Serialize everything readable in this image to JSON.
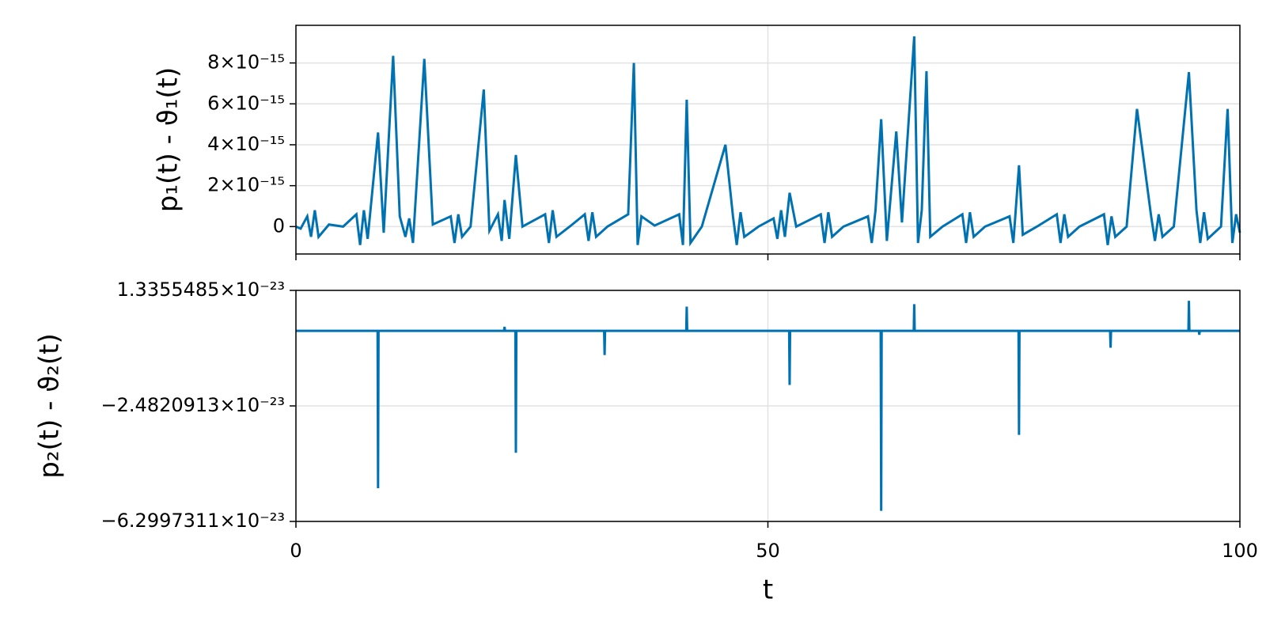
{
  "chart_data": [
    {
      "type": "line",
      "ylabel": "p₁(t) - ϑ₁(t)",
      "color": "#0072b2",
      "grid": true,
      "show_xtick_labels": false,
      "xlim": [
        0,
        100
      ],
      "xticks": [
        0,
        50,
        100
      ],
      "ylim": [
        -1.34e-15,
        9.84e-15
      ],
      "yticks": [
        0,
        {
          "value": 2e-15,
          "label": "2×10⁻¹⁵"
        },
        {
          "value": 4e-15,
          "label": "4×10⁻¹⁵"
        },
        {
          "value": 6e-15,
          "label": "6×10⁻¹⁵"
        },
        {
          "value": 8e-15,
          "label": "8×10⁻¹⁵"
        }
      ],
      "x": [
        0,
        0.5,
        1.2,
        1.6,
        2.0,
        2.4,
        3.5,
        5,
        6.4,
        6.8,
        7.2,
        7.6,
        8.7,
        9.3,
        10.3,
        11.0,
        11.6,
        12.0,
        12.4,
        13.6,
        14.5,
        16.4,
        16.8,
        17.2,
        17.6,
        18.5,
        19.9,
        20.5,
        21.4,
        21.8,
        22.1,
        22.6,
        23.3,
        24.0,
        26.4,
        26.8,
        27.2,
        27.6,
        29,
        30.6,
        31.0,
        31.4,
        31.8,
        33,
        35.2,
        35.8,
        36.2,
        36.6,
        38,
        40.6,
        41.0,
        41.4,
        41.8,
        43,
        45.5,
        46.3,
        46.7,
        47.1,
        47.5,
        49,
        50.6,
        51.0,
        51.4,
        51.8,
        52.3,
        53,
        55.6,
        56.0,
        56.4,
        56.8,
        58,
        60.6,
        61.0,
        61.4,
        62.0,
        62.6,
        63.6,
        64.2,
        65.5,
        65.9,
        66.3,
        66.8,
        67.2,
        68.5,
        70.6,
        71.0,
        71.4,
        71.8,
        73,
        75.6,
        76.0,
        76.6,
        77.0,
        78.5,
        80.6,
        81.0,
        81.4,
        81.8,
        83,
        85.6,
        86.0,
        86.4,
        86.8,
        88,
        89.1,
        90.6,
        91.0,
        91.4,
        91.8,
        93,
        94.6,
        95.4,
        95.8,
        96.2,
        96.6,
        98.0,
        98.7,
        99.2,
        99.6,
        100
      ],
      "values": [
        0,
        -1e-16,
        5e-16,
        -5e-16,
        8e-16,
        -5e-16,
        1e-16,
        0,
        6e-16,
        -9e-16,
        8e-16,
        -6e-16,
        4.6e-15,
        -3e-16,
        8.35e-15,
        5e-16,
        -5e-16,
        4e-16,
        -8e-16,
        8.2e-15,
        1e-16,
        5e-16,
        -8e-16,
        6e-16,
        -5e-16,
        0,
        6.7e-15,
        -2e-16,
        6e-16,
        -7e-16,
        1.3e-15,
        -6e-16,
        3.5e-15,
        0,
        6e-16,
        -8e-16,
        8e-16,
        -5e-16,
        0,
        6e-16,
        -7e-16,
        7e-16,
        -5e-16,
        0,
        6e-16,
        8e-15,
        -9e-16,
        5e-16,
        5e-17,
        6e-16,
        -9e-16,
        6.2e-15,
        -8e-16,
        0,
        4e-15,
        5e-16,
        -9e-16,
        7e-16,
        -5e-16,
        0,
        4e-16,
        -6e-16,
        8e-16,
        -5e-16,
        1.65e-15,
        0,
        6e-16,
        -8e-16,
        7e-16,
        -5e-16,
        0,
        5e-16,
        -8e-16,
        8e-16,
        5.25e-15,
        -7e-16,
        4.65e-15,
        2e-16,
        9.3e-15,
        -8e-16,
        8e-16,
        7.6e-15,
        -5e-16,
        0,
        6e-16,
        -8e-16,
        7e-16,
        -5e-16,
        0,
        5e-16,
        -8e-16,
        3e-15,
        -4e-16,
        0,
        6e-16,
        -8e-16,
        6e-16,
        -5e-16,
        0,
        6e-16,
        -9e-16,
        5e-16,
        -5e-16,
        0,
        5.75e-15,
        5e-16,
        -7e-16,
        6e-16,
        -5e-16,
        0,
        7.55e-15,
        8e-16,
        -8e-16,
        7e-16,
        -6e-16,
        0,
        5.75e-15,
        -8e-16,
        6e-16,
        -3e-16
      ]
    },
    {
      "type": "line",
      "ylabel": "p₂(t) - ϑ₂(t)",
      "xlabel": "t",
      "color": "#0072b2",
      "grid": true,
      "show_xtick_labels": true,
      "xlim": [
        0,
        100
      ],
      "xticks": [
        0,
        50,
        100
      ],
      "ylim": [
        -6.2997311e-23,
        1.3355485e-23
      ],
      "yticks": [
        {
          "value": -6.2997311e-23,
          "label": "−6.2997311×10⁻²³"
        },
        {
          "value": -2.4820913e-23,
          "label": "−2.4820913×10⁻²³"
        },
        {
          "value": 1.3355485e-23,
          "label": "1.3355485×10⁻²³"
        }
      ],
      "x": [
        0,
        8.65,
        8.7,
        8.75,
        22.05,
        22.1,
        22.15,
        23.25,
        23.3,
        23.35,
        32.65,
        32.7,
        32.75,
        41.35,
        41.4,
        41.45,
        52.25,
        52.3,
        52.35,
        61.95,
        62.0,
        62.05,
        65.45,
        65.5,
        65.55,
        76.55,
        76.6,
        76.65,
        86.25,
        86.3,
        86.35,
        94.55,
        94.6,
        94.65,
        95.65,
        95.7,
        95.75,
        100
      ],
      "values": [
        0,
        0,
        -5.2e-23,
        0,
        0,
        1.3e-24,
        0,
        0,
        -4.03e-23,
        0,
        0,
        -8e-24,
        0,
        0,
        8e-24,
        0,
        0,
        -1.79e-23,
        0,
        0,
        -5.95e-23,
        0,
        0,
        8.8e-24,
        0,
        0,
        -3.44e-23,
        0,
        0,
        -5.6e-24,
        0,
        0,
        9.9e-24,
        0,
        0,
        -1.3e-24,
        0,
        0
      ]
    }
  ]
}
